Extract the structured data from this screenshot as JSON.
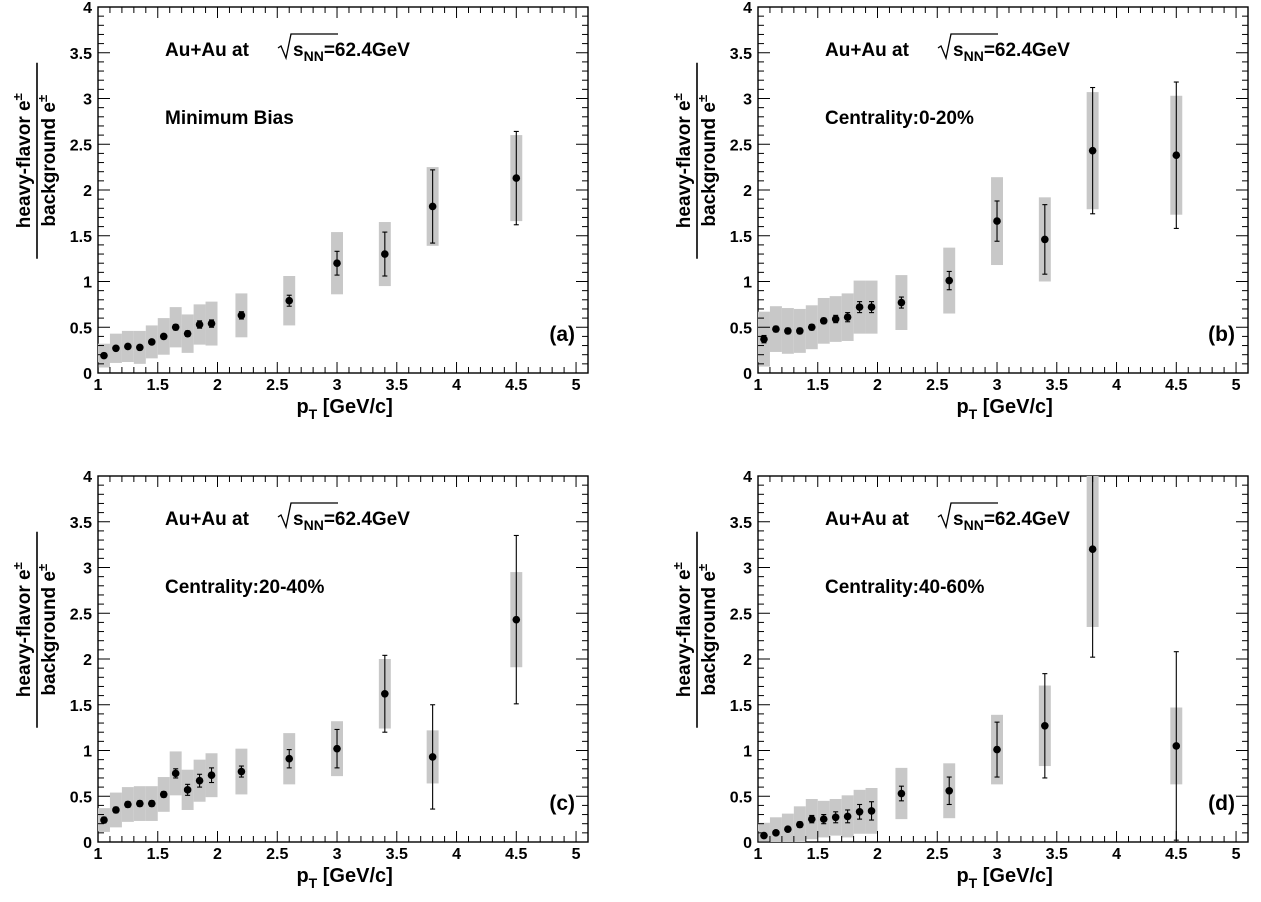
{
  "chart_data": [
    {
      "type": "scatter",
      "panel_label": "(a)",
      "annotation_system": "Au+Au at",
      "annotation_energy_symbol": "s",
      "annotation_energy_subscript": "NN",
      "annotation_energy_value": "=62.4GeV",
      "annotation_centrality": "Minimum Bias",
      "xlabel_main": "p",
      "xlabel_sub": "T",
      "xlabel_unit": " [GeV/c]",
      "ylabel_numerator": "heavy-flavor e",
      "ylabel_denominator": "background e",
      "ylabel_superscript": "±",
      "xlim": [
        1,
        5.1
      ],
      "ylim": [
        0,
        4
      ],
      "x_ticks": [
        "1",
        "1.5",
        "2",
        "2.5",
        "3",
        "3.5",
        "4",
        "4.5",
        "5"
      ],
      "y_ticks": [
        "0",
        "0.5",
        "1",
        "1.5",
        "2",
        "2.5",
        "3",
        "3.5",
        "4"
      ],
      "points": [
        {
          "x": 1.05,
          "y": 0.19,
          "stat": 0.02,
          "sys": 0.13
        },
        {
          "x": 1.15,
          "y": 0.27,
          "stat": 0.02,
          "sys": 0.16
        },
        {
          "x": 1.25,
          "y": 0.29,
          "stat": 0.02,
          "sys": 0.17
        },
        {
          "x": 1.35,
          "y": 0.28,
          "stat": 0.02,
          "sys": 0.18
        },
        {
          "x": 1.45,
          "y": 0.34,
          "stat": 0.02,
          "sys": 0.18
        },
        {
          "x": 1.55,
          "y": 0.4,
          "stat": 0.02,
          "sys": 0.2
        },
        {
          "x": 1.65,
          "y": 0.5,
          "stat": 0.03,
          "sys": 0.22
        },
        {
          "x": 1.75,
          "y": 0.43,
          "stat": 0.03,
          "sys": 0.21
        },
        {
          "x": 1.85,
          "y": 0.53,
          "stat": 0.04,
          "sys": 0.22
        },
        {
          "x": 1.95,
          "y": 0.54,
          "stat": 0.04,
          "sys": 0.24
        },
        {
          "x": 2.2,
          "y": 0.63,
          "stat": 0.04,
          "sys": 0.24
        },
        {
          "x": 2.6,
          "y": 0.79,
          "stat": 0.06,
          "sys": 0.27
        },
        {
          "x": 3.0,
          "y": 1.2,
          "stat": 0.13,
          "sys": 0.34
        },
        {
          "x": 3.4,
          "y": 1.3,
          "stat": 0.24,
          "sys": 0.35
        },
        {
          "x": 3.8,
          "y": 1.82,
          "stat": 0.4,
          "sys": 0.43
        },
        {
          "x": 4.5,
          "y": 2.13,
          "stat": 0.51,
          "sys": 0.47
        }
      ]
    },
    {
      "type": "scatter",
      "panel_label": "(b)",
      "annotation_system": "Au+Au at",
      "annotation_energy_symbol": "s",
      "annotation_energy_subscript": "NN",
      "annotation_energy_value": "=62.4GeV",
      "annotation_centrality": "Centrality:0-20%",
      "xlabel_main": "p",
      "xlabel_sub": "T",
      "xlabel_unit": " [GeV/c]",
      "ylabel_numerator": "heavy-flavor e",
      "ylabel_denominator": "background e",
      "ylabel_superscript": "±",
      "xlim": [
        1,
        5.1
      ],
      "ylim": [
        0,
        4
      ],
      "x_ticks": [
        "1",
        "1.5",
        "2",
        "2.5",
        "3",
        "3.5",
        "4",
        "4.5",
        "5"
      ],
      "y_ticks": [
        "0",
        "0.5",
        "1",
        "1.5",
        "2",
        "2.5",
        "3",
        "3.5",
        "4"
      ],
      "points": [
        {
          "x": 1.05,
          "y": 0.37,
          "stat": 0.04,
          "sys": 0.3
        },
        {
          "x": 1.15,
          "y": 0.48,
          "stat": 0.03,
          "sys": 0.25
        },
        {
          "x": 1.25,
          "y": 0.46,
          "stat": 0.03,
          "sys": 0.25
        },
        {
          "x": 1.35,
          "y": 0.46,
          "stat": 0.03,
          "sys": 0.24
        },
        {
          "x": 1.45,
          "y": 0.5,
          "stat": 0.03,
          "sys": 0.24
        },
        {
          "x": 1.55,
          "y": 0.57,
          "stat": 0.03,
          "sys": 0.25
        },
        {
          "x": 1.65,
          "y": 0.59,
          "stat": 0.04,
          "sys": 0.25
        },
        {
          "x": 1.75,
          "y": 0.61,
          "stat": 0.05,
          "sys": 0.26
        },
        {
          "x": 1.85,
          "y": 0.72,
          "stat": 0.06,
          "sys": 0.29
        },
        {
          "x": 1.95,
          "y": 0.72,
          "stat": 0.06,
          "sys": 0.29
        },
        {
          "x": 2.2,
          "y": 0.77,
          "stat": 0.06,
          "sys": 0.3
        },
        {
          "x": 2.6,
          "y": 1.01,
          "stat": 0.1,
          "sys": 0.36
        },
        {
          "x": 3.0,
          "y": 1.66,
          "stat": 0.22,
          "sys": 0.48
        },
        {
          "x": 3.4,
          "y": 1.46,
          "stat": 0.38,
          "sys": 0.46
        },
        {
          "x": 3.8,
          "y": 2.43,
          "stat": 0.69,
          "sys": 0.64
        },
        {
          "x": 4.5,
          "y": 2.38,
          "stat": 0.8,
          "sys": 0.65
        }
      ]
    },
    {
      "type": "scatter",
      "panel_label": "(c)",
      "annotation_system": "Au+Au at",
      "annotation_energy_symbol": "s",
      "annotation_energy_subscript": "NN",
      "annotation_energy_value": "=62.4GeV",
      "annotation_centrality": "Centrality:20-40%",
      "xlabel_main": "p",
      "xlabel_sub": "T",
      "xlabel_unit": " [GeV/c]",
      "ylabel_numerator": "heavy-flavor e",
      "ylabel_denominator": "background e",
      "ylabel_superscript": "±",
      "xlim": [
        1,
        5.1
      ],
      "ylim": [
        0,
        4
      ],
      "x_ticks": [
        "1",
        "1.5",
        "2",
        "2.5",
        "3",
        "3.5",
        "4",
        "4.5",
        "5"
      ],
      "y_ticks": [
        "0",
        "0.5",
        "1",
        "1.5",
        "2",
        "2.5",
        "3",
        "3.5",
        "4"
      ],
      "points": [
        {
          "x": 1.05,
          "y": 0.24,
          "stat": 0.03,
          "sys": 0.13
        },
        {
          "x": 1.15,
          "y": 0.35,
          "stat": 0.03,
          "sys": 0.19
        },
        {
          "x": 1.25,
          "y": 0.41,
          "stat": 0.03,
          "sys": 0.19
        },
        {
          "x": 1.35,
          "y": 0.42,
          "stat": 0.03,
          "sys": 0.19
        },
        {
          "x": 1.45,
          "y": 0.42,
          "stat": 0.03,
          "sys": 0.19
        },
        {
          "x": 1.55,
          "y": 0.52,
          "stat": 0.03,
          "sys": 0.19
        },
        {
          "x": 1.65,
          "y": 0.75,
          "stat": 0.05,
          "sys": 0.24
        },
        {
          "x": 1.75,
          "y": 0.57,
          "stat": 0.06,
          "sys": 0.22
        },
        {
          "x": 1.85,
          "y": 0.67,
          "stat": 0.07,
          "sys": 0.23
        },
        {
          "x": 1.95,
          "y": 0.73,
          "stat": 0.08,
          "sys": 0.24
        },
        {
          "x": 2.2,
          "y": 0.77,
          "stat": 0.06,
          "sys": 0.25
        },
        {
          "x": 2.6,
          "y": 0.91,
          "stat": 0.1,
          "sys": 0.28
        },
        {
          "x": 3.0,
          "y": 1.02,
          "stat": 0.21,
          "sys": 0.3
        },
        {
          "x": 3.4,
          "y": 1.62,
          "stat": 0.42,
          "sys": 0.38
        },
        {
          "x": 3.8,
          "y": 0.93,
          "stat": 0.57,
          "sys": 0.29
        },
        {
          "x": 4.5,
          "y": 2.43,
          "stat": 0.92,
          "sys": 0.52
        }
      ]
    },
    {
      "type": "scatter",
      "panel_label": "(d)",
      "annotation_system": "Au+Au at",
      "annotation_energy_symbol": "s",
      "annotation_energy_subscript": "NN",
      "annotation_energy_value": "=62.4GeV",
      "annotation_centrality": "Centrality:40-60%",
      "xlabel_main": "p",
      "xlabel_sub": "T",
      "xlabel_unit": " [GeV/c]",
      "ylabel_numerator": "heavy-flavor e",
      "ylabel_denominator": "background e",
      "ylabel_superscript": "±",
      "xlim": [
        1,
        5.1
      ],
      "ylim": [
        0,
        4
      ],
      "x_ticks": [
        "1",
        "1.5",
        "2",
        "2.5",
        "3",
        "3.5",
        "4",
        "4.5",
        "5"
      ],
      "y_ticks": [
        "0",
        "0.5",
        "1",
        "1.5",
        "2",
        "2.5",
        "3",
        "3.5",
        "4"
      ],
      "points": [
        {
          "x": 1.05,
          "y": 0.07,
          "stat": 0.02,
          "sys": 0.14
        },
        {
          "x": 1.15,
          "y": 0.1,
          "stat": 0.02,
          "sys": 0.17
        },
        {
          "x": 1.25,
          "y": 0.14,
          "stat": 0.02,
          "sys": 0.17
        },
        {
          "x": 1.35,
          "y": 0.19,
          "stat": 0.03,
          "sys": 0.2
        },
        {
          "x": 1.45,
          "y": 0.25,
          "stat": 0.04,
          "sys": 0.22
        },
        {
          "x": 1.55,
          "y": 0.25,
          "stat": 0.05,
          "sys": 0.2
        },
        {
          "x": 1.65,
          "y": 0.27,
          "stat": 0.06,
          "sys": 0.2
        },
        {
          "x": 1.75,
          "y": 0.28,
          "stat": 0.07,
          "sys": 0.23
        },
        {
          "x": 1.85,
          "y": 0.33,
          "stat": 0.08,
          "sys": 0.24
        },
        {
          "x": 1.95,
          "y": 0.34,
          "stat": 0.1,
          "sys": 0.25
        },
        {
          "x": 2.2,
          "y": 0.53,
          "stat": 0.08,
          "sys": 0.28
        },
        {
          "x": 2.6,
          "y": 0.56,
          "stat": 0.15,
          "sys": 0.3
        },
        {
          "x": 3.0,
          "y": 1.01,
          "stat": 0.3,
          "sys": 0.38
        },
        {
          "x": 3.4,
          "y": 1.27,
          "stat": 0.57,
          "sys": 0.44
        },
        {
          "x": 3.8,
          "y": 3.2,
          "stat": 1.18,
          "sys": 0.85
        },
        {
          "x": 4.5,
          "y": 1.05,
          "stat": 1.03,
          "sys": 0.42
        }
      ]
    }
  ]
}
